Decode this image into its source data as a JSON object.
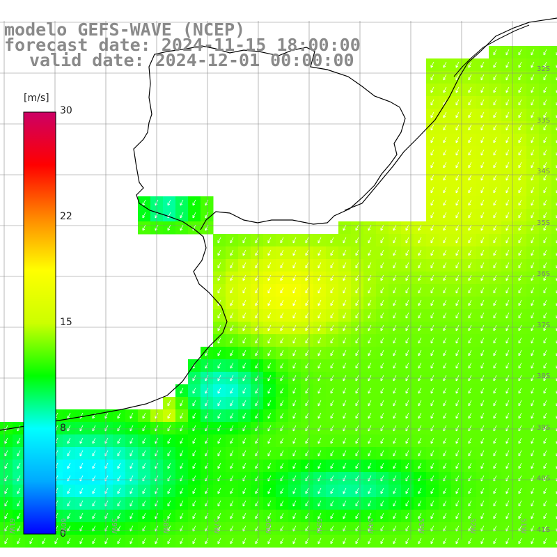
{
  "title": {
    "line1": "modelo GEFS-WAVE (NCEP)",
    "line2": "forecast date: 2024-11-15 18:00:00",
    "line3": "valid date: 2024-12-01 00:00:00"
  },
  "colorbar": {
    "unit": "[m/s]",
    "ticks": [
      "30",
      "22",
      "15",
      "8",
      "0"
    ],
    "tick_values": [
      30,
      22,
      15,
      8,
      0
    ],
    "range": [
      0,
      30
    ],
    "colors": [
      "#0000ff",
      "#00aaff",
      "#00ffff",
      "#00ff00",
      "#ccff00",
      "#ffff00",
      "#ff8800",
      "#ff0000",
      "#cc0066"
    ]
  },
  "lat_labels": [
    "32S",
    "33S",
    "34S",
    "35S",
    "36S",
    "37S",
    "38S",
    "39S",
    "40S",
    "41S"
  ],
  "lon_labels": [
    "61W",
    "60W",
    "59W",
    "58W",
    "57W",
    "56W",
    "55W",
    "54W",
    "53W",
    "52W",
    "51W"
  ],
  "colors": {
    "coast": "#000000",
    "grid": "#888888",
    "title": "#8a8a8a",
    "arrow": "#ffffff"
  }
}
